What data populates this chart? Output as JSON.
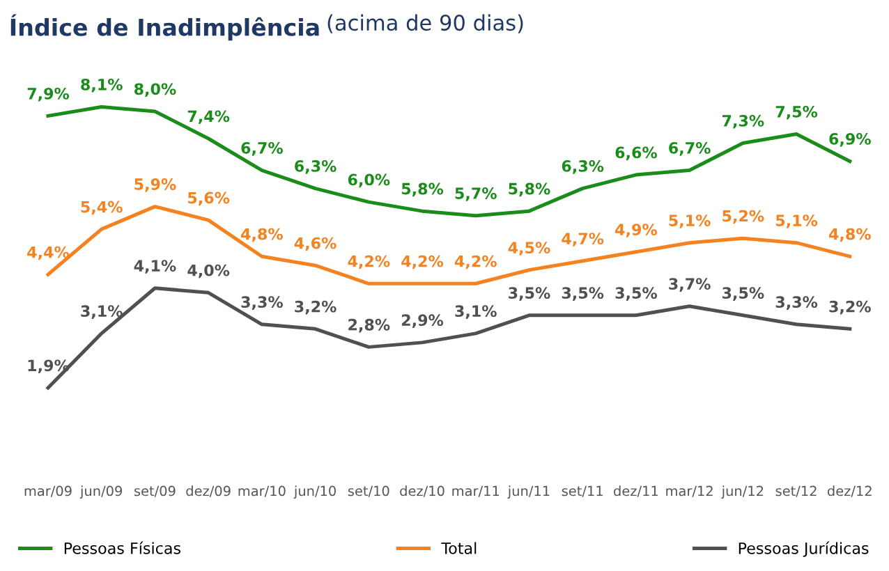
{
  "chart_data": {
    "type": "line",
    "title": "Índice de Inadimplência",
    "subtitle": "(acima de 90 dias)",
    "categories": [
      "mar/09",
      "jun/09",
      "set/09",
      "dez/09",
      "mar/10",
      "jun/10",
      "set/10",
      "dez/10",
      "mar/11",
      "jun/11",
      "set/11",
      "dez/11",
      "mar/12",
      "jun/12",
      "set/12",
      "dez/12"
    ],
    "series": [
      {
        "name": "Pessoas Físicas",
        "color": "#1a8c1a",
        "values": [
          7.9,
          8.1,
          8.0,
          7.4,
          6.7,
          6.3,
          6.0,
          5.8,
          5.7,
          5.8,
          6.3,
          6.6,
          6.7,
          7.3,
          7.5,
          6.9
        ],
        "value_labels": [
          "7,9%",
          "8,1%",
          "8,0%",
          "7,4%",
          "6,7%",
          "6,3%",
          "6,0%",
          "5,8%",
          "5,7%",
          "5,8%",
          "6,3%",
          "6,6%",
          "6,7%",
          "7,3%",
          "7,5%",
          "6,9%"
        ]
      },
      {
        "name": "Total",
        "color": "#f58220",
        "values": [
          4.4,
          5.4,
          5.9,
          5.6,
          4.8,
          4.6,
          4.2,
          4.2,
          4.2,
          4.5,
          4.7,
          4.9,
          5.1,
          5.2,
          5.1,
          4.8
        ],
        "value_labels": [
          "4,4%",
          "5,4%",
          "5,9%",
          "5,6%",
          "4,8%",
          "4,6%",
          "4,2%",
          "4,2%",
          "4,2%",
          "4,5%",
          "4,7%",
          "4,9%",
          "5,1%",
          "5,2%",
          "5,1%",
          "4,8%"
        ]
      },
      {
        "name": "Pessoas Jurídicas",
        "color": "#505050",
        "values": [
          1.9,
          3.1,
          4.1,
          4.0,
          3.3,
          3.2,
          2.8,
          2.9,
          3.1,
          3.5,
          3.5,
          3.5,
          3.7,
          3.5,
          3.3,
          3.2
        ],
        "value_labels": [
          "1,9%",
          "3,1%",
          "4,1%",
          "4,0%",
          "3,3%",
          "3,2%",
          "2,8%",
          "2,9%",
          "3,1%",
          "3,5%",
          "3,5%",
          "3,5%",
          "3,7%",
          "3,5%",
          "3,3%",
          "3,2%"
        ]
      }
    ],
    "grid": false,
    "legend": "bottom",
    "marker": "none",
    "line_style": "solid"
  }
}
